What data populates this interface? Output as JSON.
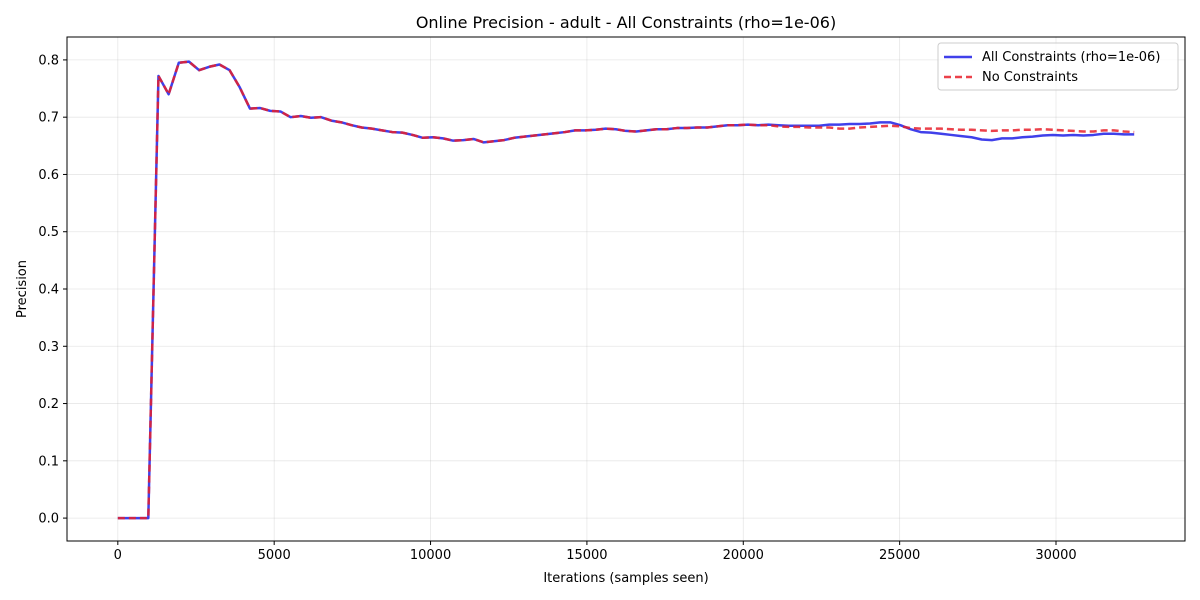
{
  "chart_data": {
    "type": "line",
    "title": "Online Precision - adult - All Constraints (rho=1e-06)",
    "xlabel": "Iterations (samples seen)",
    "ylabel": "Precision",
    "xlim": [
      -1625,
      34125
    ],
    "ylim": [
      -0.04,
      0.84
    ],
    "xticks": [
      0,
      5000,
      10000,
      15000,
      20000,
      25000,
      30000
    ],
    "yticks": [
      0.0,
      0.1,
      0.2,
      0.3,
      0.4,
      0.5,
      0.6,
      0.7,
      0.8
    ],
    "ytick_labels": [
      "0.0",
      "0.1",
      "0.2",
      "0.3",
      "0.4",
      "0.5",
      "0.6",
      "0.7",
      "0.8"
    ],
    "grid": true,
    "legend_position": "top-right",
    "series": [
      {
        "name": "All Constraints (rho=1e-06)",
        "color": "#1f1fe6",
        "style": "solid",
        "points": [
          [
            0,
            0.0
          ],
          [
            325,
            0.0
          ],
          [
            650,
            0.0
          ],
          [
            975,
            0.0
          ],
          [
            1300,
            0.772
          ],
          [
            1625,
            0.74
          ],
          [
            1950,
            0.795
          ],
          [
            2275,
            0.797
          ],
          [
            2600,
            0.782
          ],
          [
            2925,
            0.788
          ],
          [
            3250,
            0.792
          ],
          [
            3575,
            0.782
          ],
          [
            3900,
            0.752
          ],
          [
            4225,
            0.715
          ],
          [
            4550,
            0.716
          ],
          [
            4875,
            0.711
          ],
          [
            5200,
            0.71
          ],
          [
            5525,
            0.7
          ],
          [
            5850,
            0.702
          ],
          [
            6175,
            0.699
          ],
          [
            6500,
            0.7
          ],
          [
            6825,
            0.694
          ],
          [
            7150,
            0.691
          ],
          [
            7475,
            0.686
          ],
          [
            7800,
            0.682
          ],
          [
            8125,
            0.68
          ],
          [
            8450,
            0.677
          ],
          [
            8775,
            0.674
          ],
          [
            9100,
            0.673
          ],
          [
            9425,
            0.669
          ],
          [
            9750,
            0.664
          ],
          [
            10075,
            0.665
          ],
          [
            10400,
            0.663
          ],
          [
            10725,
            0.659
          ],
          [
            11050,
            0.66
          ],
          [
            11375,
            0.662
          ],
          [
            11700,
            0.656
          ],
          [
            12025,
            0.658
          ],
          [
            12350,
            0.66
          ],
          [
            12675,
            0.664
          ],
          [
            13000,
            0.666
          ],
          [
            13325,
            0.668
          ],
          [
            13650,
            0.67
          ],
          [
            13975,
            0.672
          ],
          [
            14300,
            0.674
          ],
          [
            14625,
            0.677
          ],
          [
            14950,
            0.677
          ],
          [
            15275,
            0.678
          ],
          [
            15600,
            0.68
          ],
          [
            15925,
            0.679
          ],
          [
            16250,
            0.676
          ],
          [
            16575,
            0.675
          ],
          [
            16900,
            0.677
          ],
          [
            17225,
            0.679
          ],
          [
            17550,
            0.679
          ],
          [
            17875,
            0.681
          ],
          [
            18200,
            0.681
          ],
          [
            18525,
            0.682
          ],
          [
            18850,
            0.682
          ],
          [
            19175,
            0.684
          ],
          [
            19500,
            0.686
          ],
          [
            19825,
            0.686
          ],
          [
            20150,
            0.687
          ],
          [
            20475,
            0.686
          ],
          [
            20800,
            0.687
          ],
          [
            21125,
            0.686
          ],
          [
            21450,
            0.685
          ],
          [
            21775,
            0.685
          ],
          [
            22100,
            0.685
          ],
          [
            22425,
            0.685
          ],
          [
            22750,
            0.687
          ],
          [
            23075,
            0.687
          ],
          [
            23400,
            0.688
          ],
          [
            23725,
            0.688
          ],
          [
            24050,
            0.689
          ],
          [
            24375,
            0.691
          ],
          [
            24700,
            0.691
          ],
          [
            25025,
            0.686
          ],
          [
            25350,
            0.679
          ],
          [
            25675,
            0.674
          ],
          [
            26000,
            0.673
          ],
          [
            26325,
            0.671
          ],
          [
            26650,
            0.669
          ],
          [
            26975,
            0.667
          ],
          [
            27300,
            0.665
          ],
          [
            27625,
            0.661
          ],
          [
            27950,
            0.66
          ],
          [
            28275,
            0.663
          ],
          [
            28600,
            0.663
          ],
          [
            28925,
            0.665
          ],
          [
            29250,
            0.666
          ],
          [
            29575,
            0.668
          ],
          [
            29900,
            0.669
          ],
          [
            30225,
            0.668
          ],
          [
            30550,
            0.669
          ],
          [
            30875,
            0.668
          ],
          [
            31200,
            0.669
          ],
          [
            31525,
            0.671
          ],
          [
            31850,
            0.671
          ],
          [
            32175,
            0.67
          ],
          [
            32500,
            0.67
          ]
        ]
      },
      {
        "name": "No Constraints",
        "color": "#e8202a",
        "style": "dashed",
        "points": [
          [
            0,
            0.0
          ],
          [
            325,
            0.0
          ],
          [
            650,
            0.0
          ],
          [
            975,
            0.0
          ],
          [
            1300,
            0.772
          ],
          [
            1625,
            0.74
          ],
          [
            1950,
            0.795
          ],
          [
            2275,
            0.797
          ],
          [
            2600,
            0.782
          ],
          [
            2925,
            0.788
          ],
          [
            3250,
            0.792
          ],
          [
            3575,
            0.782
          ],
          [
            3900,
            0.752
          ],
          [
            4225,
            0.715
          ],
          [
            4550,
            0.716
          ],
          [
            4875,
            0.711
          ],
          [
            5200,
            0.71
          ],
          [
            5525,
            0.7
          ],
          [
            5850,
            0.702
          ],
          [
            6175,
            0.699
          ],
          [
            6500,
            0.7
          ],
          [
            6825,
            0.694
          ],
          [
            7150,
            0.691
          ],
          [
            7475,
            0.686
          ],
          [
            7800,
            0.682
          ],
          [
            8125,
            0.68
          ],
          [
            8450,
            0.677
          ],
          [
            8775,
            0.674
          ],
          [
            9100,
            0.673
          ],
          [
            9425,
            0.669
          ],
          [
            9750,
            0.664
          ],
          [
            10075,
            0.665
          ],
          [
            10400,
            0.663
          ],
          [
            10725,
            0.659
          ],
          [
            11050,
            0.66
          ],
          [
            11375,
            0.662
          ],
          [
            11700,
            0.656
          ],
          [
            12025,
            0.658
          ],
          [
            12350,
            0.66
          ],
          [
            12675,
            0.664
          ],
          [
            13000,
            0.666
          ],
          [
            13325,
            0.668
          ],
          [
            13650,
            0.67
          ],
          [
            13975,
            0.672
          ],
          [
            14300,
            0.674
          ],
          [
            14625,
            0.677
          ],
          [
            14950,
            0.677
          ],
          [
            15275,
            0.678
          ],
          [
            15600,
            0.68
          ],
          [
            15925,
            0.679
          ],
          [
            16250,
            0.676
          ],
          [
            16575,
            0.675
          ],
          [
            16900,
            0.677
          ],
          [
            17225,
            0.679
          ],
          [
            17550,
            0.679
          ],
          [
            17875,
            0.681
          ],
          [
            18200,
            0.681
          ],
          [
            18525,
            0.682
          ],
          [
            18850,
            0.682
          ],
          [
            19175,
            0.684
          ],
          [
            19500,
            0.686
          ],
          [
            19825,
            0.686
          ],
          [
            20150,
            0.687
          ],
          [
            20475,
            0.686
          ],
          [
            20800,
            0.686
          ],
          [
            21125,
            0.684
          ],
          [
            21450,
            0.683
          ],
          [
            21775,
            0.683
          ],
          [
            22100,
            0.682
          ],
          [
            22425,
            0.682
          ],
          [
            22750,
            0.682
          ],
          [
            23075,
            0.68
          ],
          [
            23400,
            0.68
          ],
          [
            23725,
            0.682
          ],
          [
            24050,
            0.683
          ],
          [
            24375,
            0.684
          ],
          [
            24700,
            0.685
          ],
          [
            25025,
            0.684
          ],
          [
            25350,
            0.681
          ],
          [
            25675,
            0.68
          ],
          [
            26000,
            0.68
          ],
          [
            26325,
            0.68
          ],
          [
            26650,
            0.679
          ],
          [
            26975,
            0.678
          ],
          [
            27300,
            0.678
          ],
          [
            27625,
            0.677
          ],
          [
            27950,
            0.676
          ],
          [
            28275,
            0.677
          ],
          [
            28600,
            0.677
          ],
          [
            28925,
            0.678
          ],
          [
            29250,
            0.678
          ],
          [
            29575,
            0.679
          ],
          [
            29900,
            0.678
          ],
          [
            30225,
            0.677
          ],
          [
            30550,
            0.676
          ],
          [
            30875,
            0.675
          ],
          [
            31200,
            0.675
          ],
          [
            31525,
            0.677
          ],
          [
            31850,
            0.677
          ],
          [
            32175,
            0.675
          ],
          [
            32500,
            0.674
          ]
        ]
      }
    ]
  }
}
